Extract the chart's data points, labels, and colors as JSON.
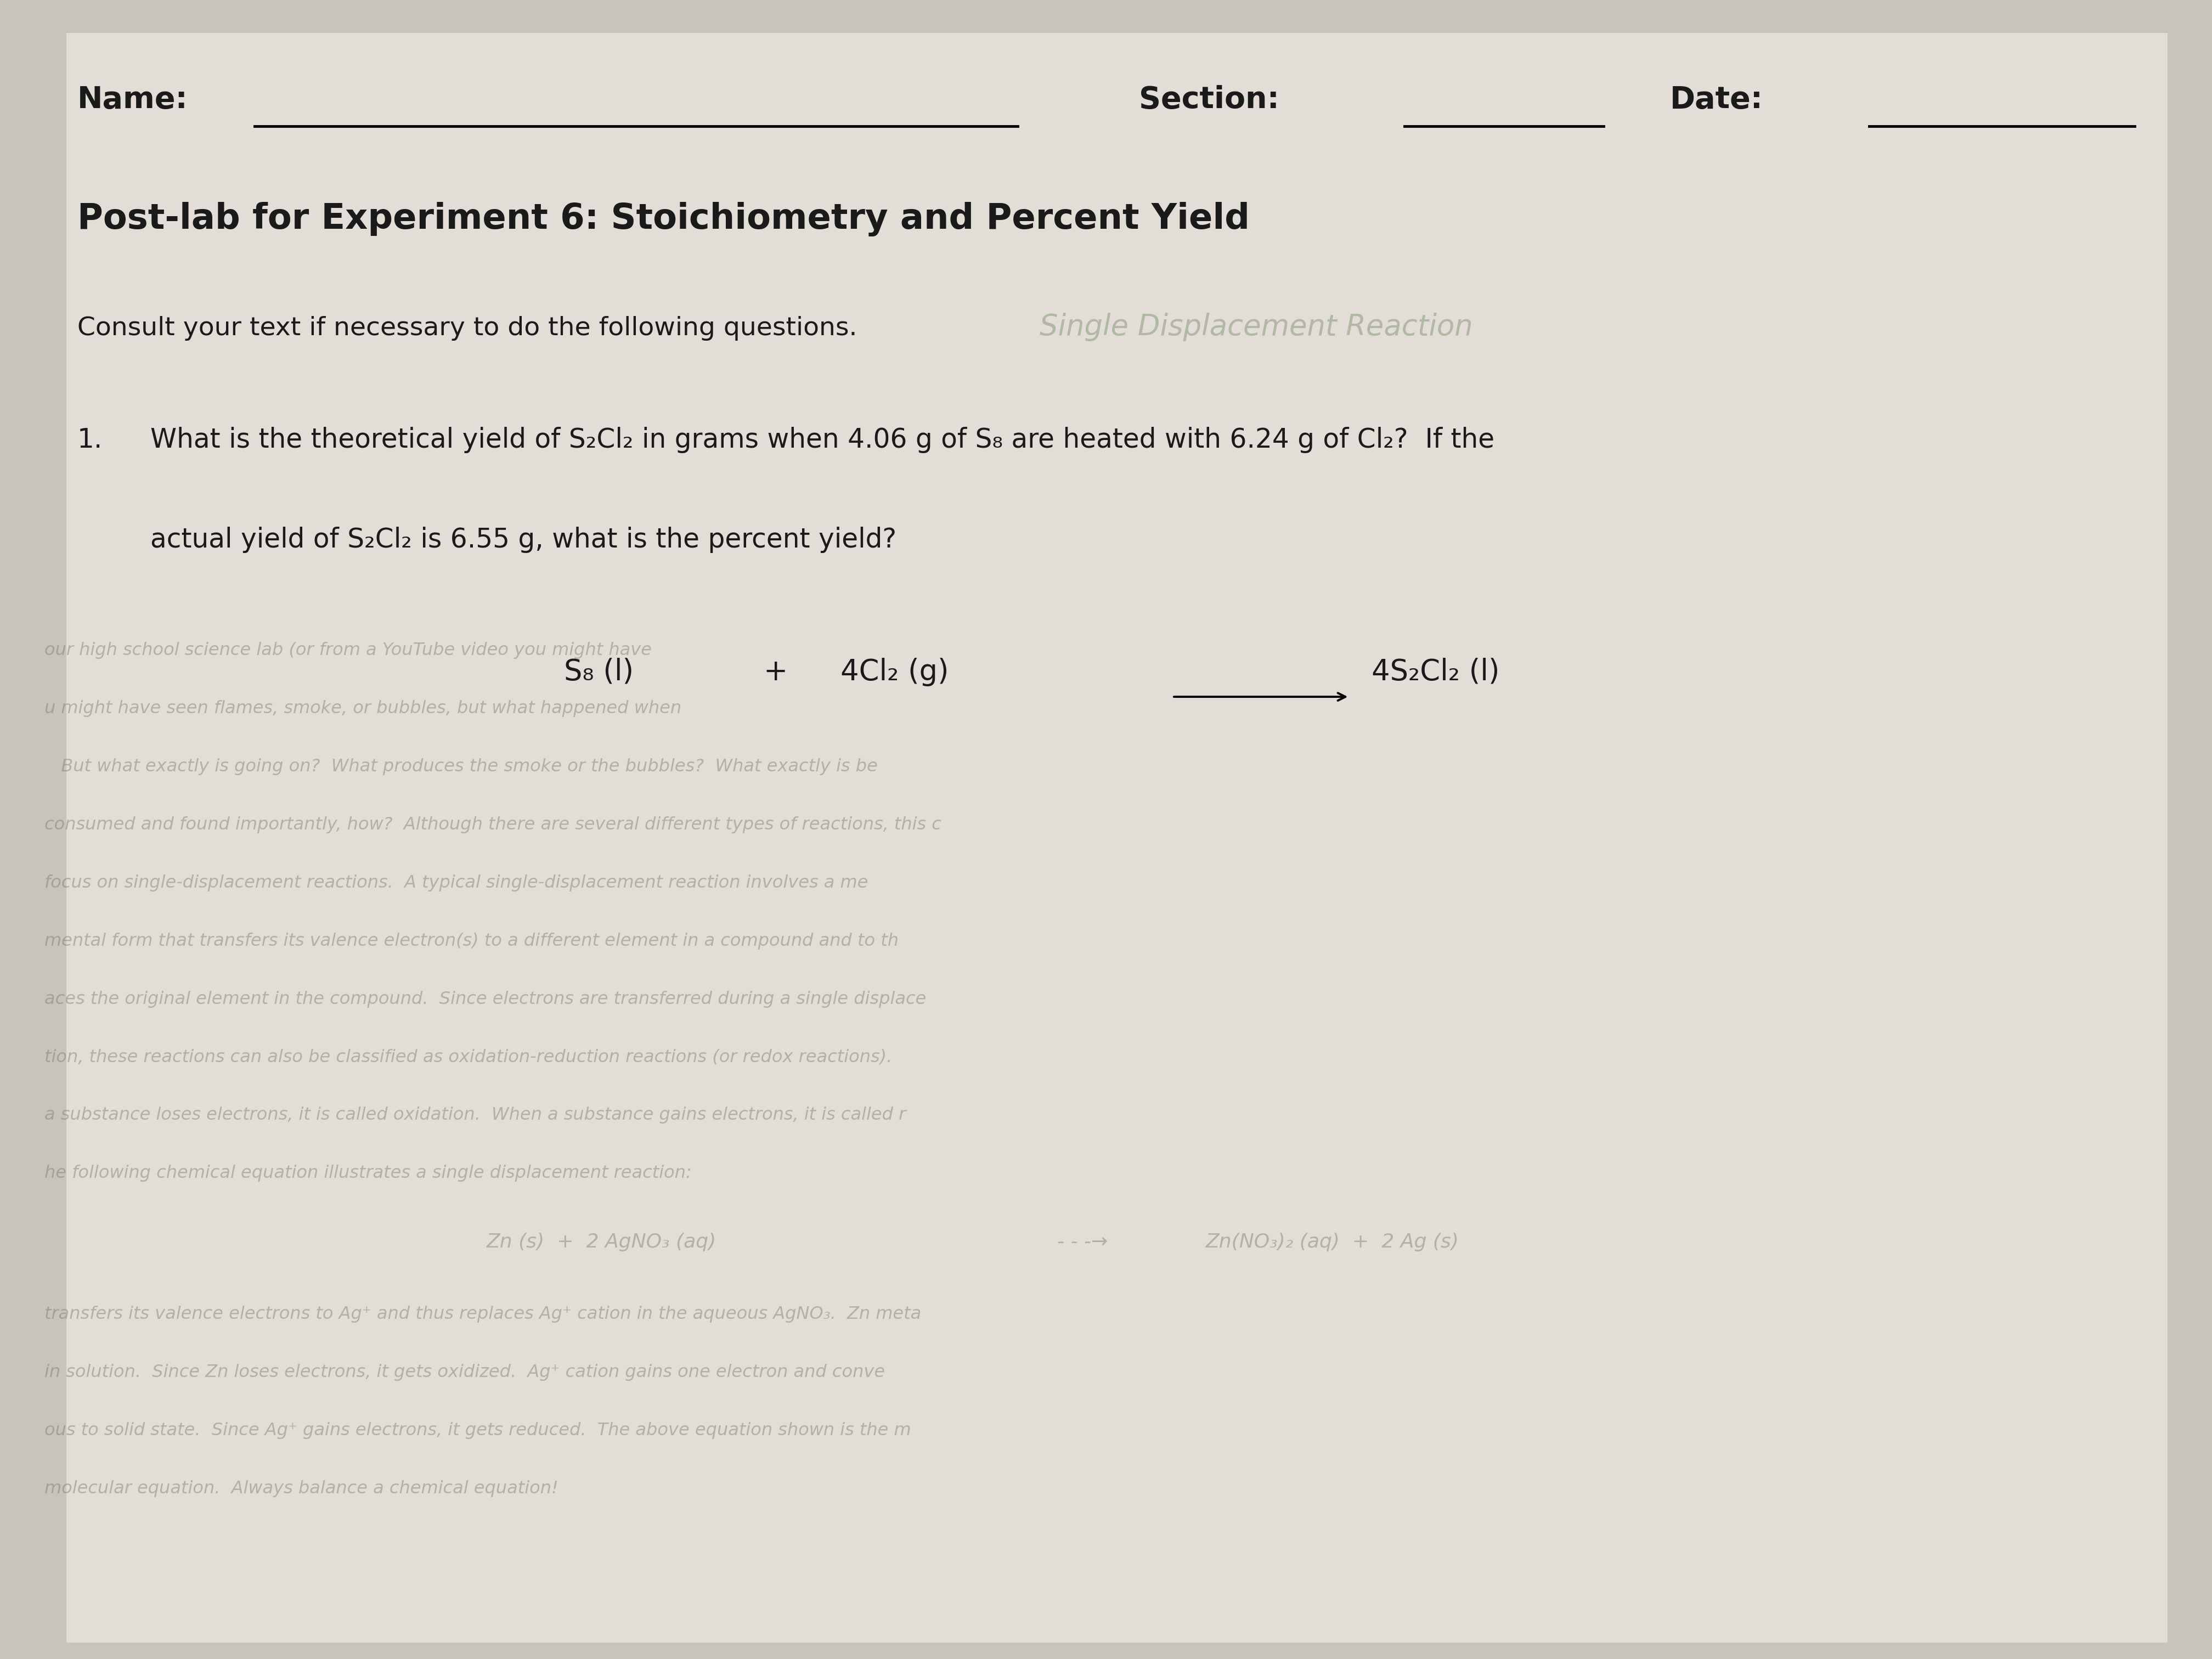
{
  "bg_color": "#c8c4bc",
  "paper_color": "#e2ddd6",
  "text_color": "#1a1a1a",
  "title": "Post-lab for Experiment 6: Stoichiometry and Percent Yield",
  "header_name": "Name:",
  "header_section": "Section:",
  "header_date": "Date:",
  "instructions": "Consult your text if necessary to do the following questions.",
  "question_number": "1.",
  "question_text": "What is the theoretical yield of S₂Cl₂ in grams when 4.06 g of S₈ are heated with 6.24 g of Cl₂?  If the",
  "question_text2": "actual yield of S₂Cl₂ is 6.55 g, what is the percent yield?",
  "eq_reactant1": "S₈ (l)",
  "eq_plus": "+",
  "eq_reactant2": "4Cl₂ (g)",
  "eq_product": "4S₂Cl₂ (l)",
  "faded_text": "Single Displacement Reaction",
  "faded_color": "#8a9a7a",
  "faded_alpha": 0.55,
  "faded_lines_color": "#6a7060",
  "faded_lines_alpha": 0.4
}
